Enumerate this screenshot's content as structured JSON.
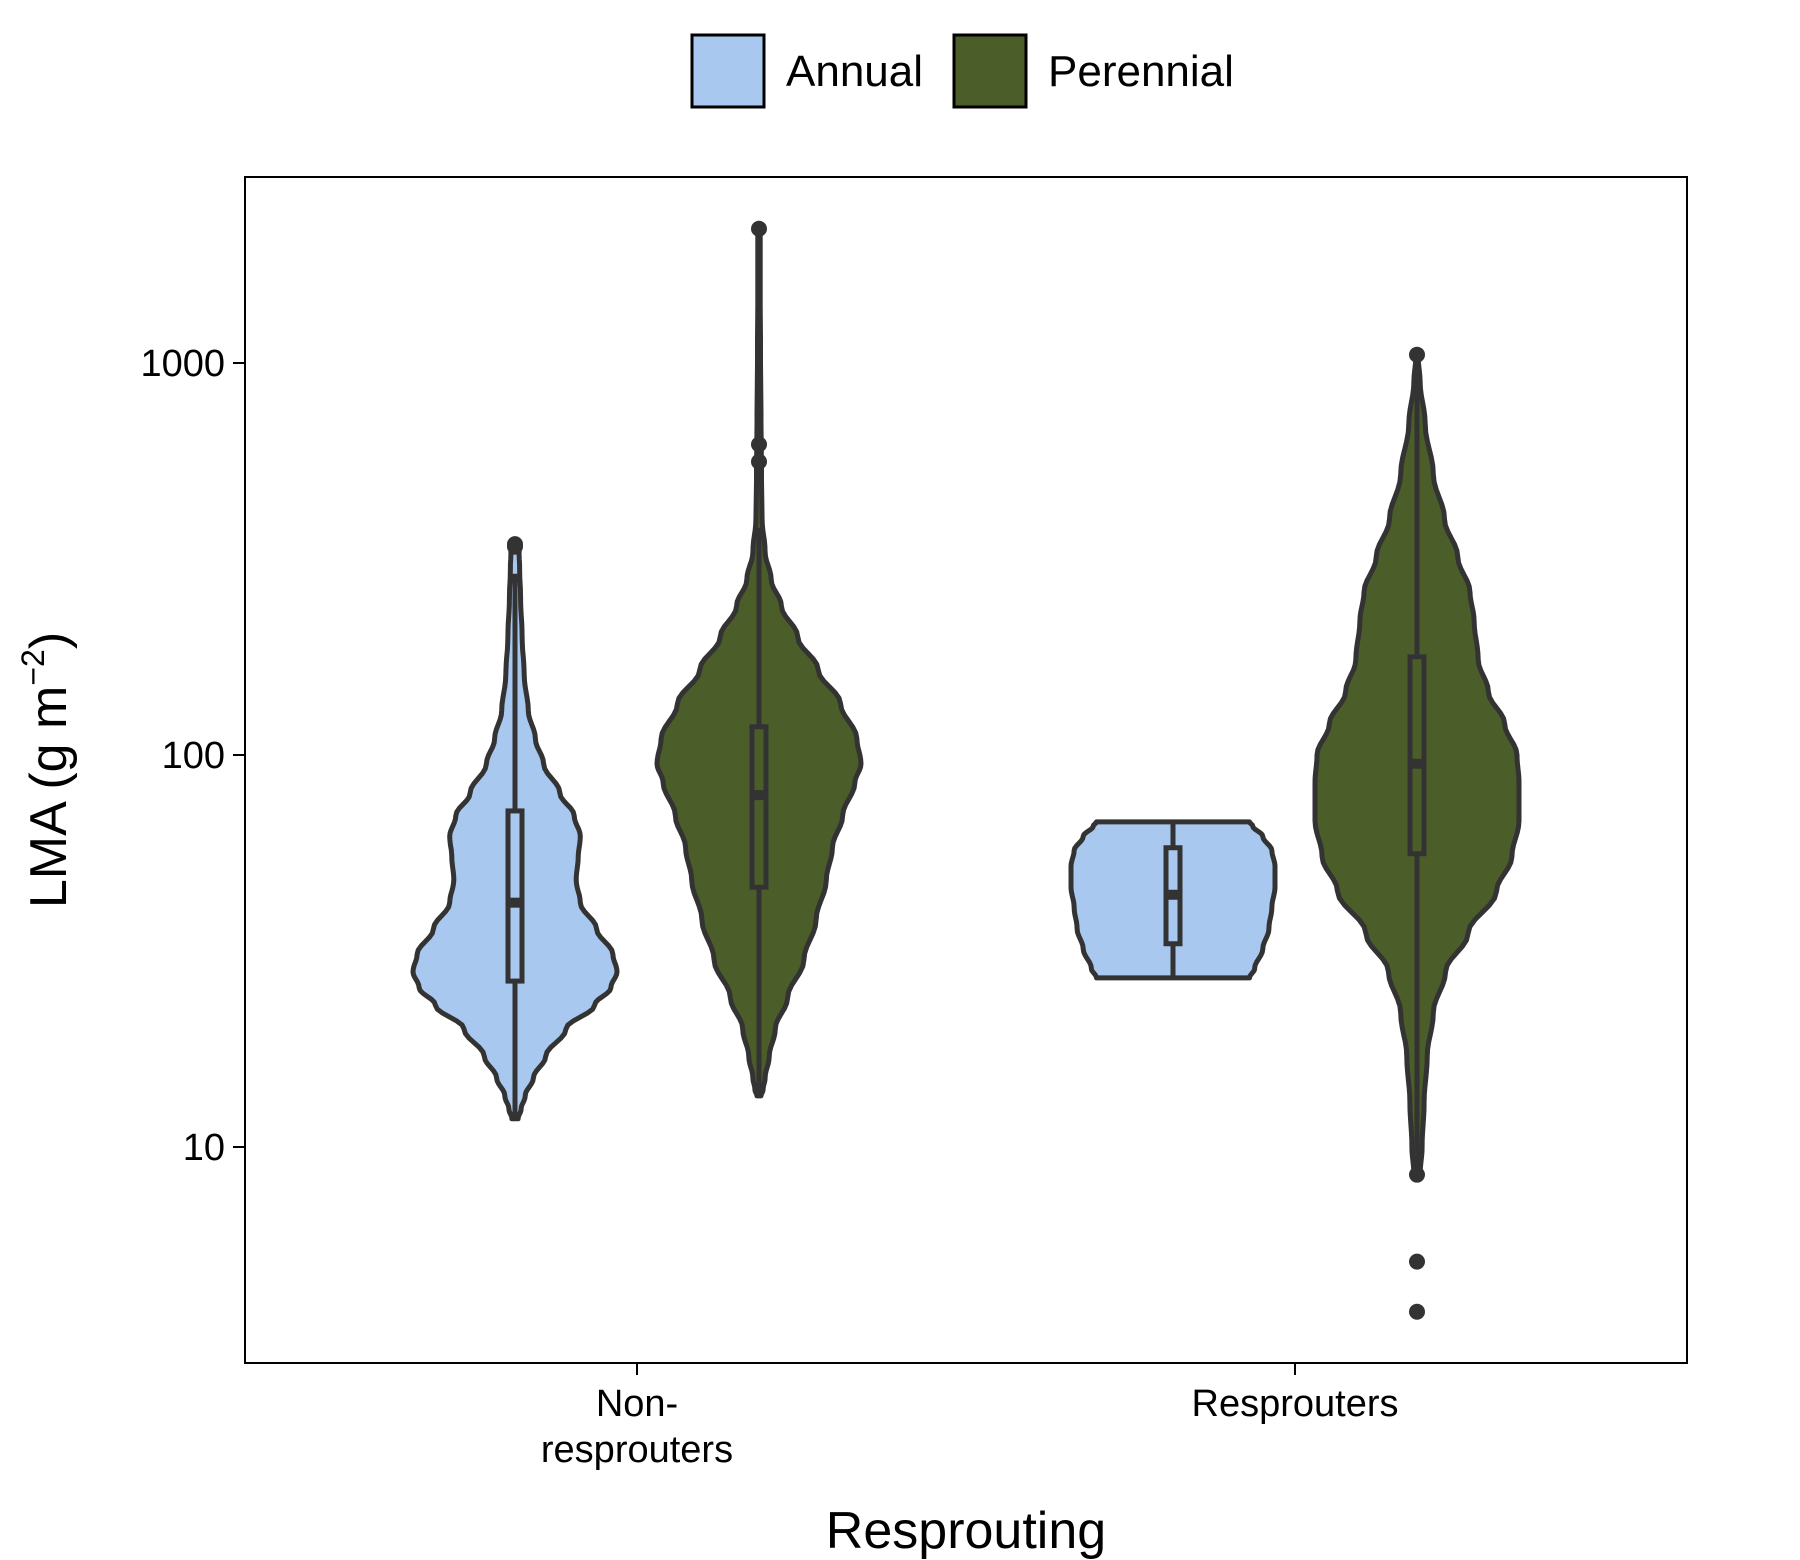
{
  "chart_data": {
    "type": "violin",
    "legend": {
      "position": "top",
      "entries": [
        {
          "label": "Annual",
          "color": "#A9C8EF"
        },
        {
          "label": "Perennial",
          "color": "#4B5E2A"
        }
      ]
    },
    "xlabel": "Resprouting",
    "ylabel_main": "LMA (g m",
    "ylabel_sup": "−2",
    "ylabel_close": ")",
    "y_scale": "log10",
    "ylim": [
      3.5,
      2800
    ],
    "y_ticks": [
      {
        "value": 10,
        "label": "10"
      },
      {
        "value": 100,
        "label": "100"
      },
      {
        "value": 1000,
        "label": "1000"
      }
    ],
    "categories": [
      {
        "lines": [
          "Non-",
          "resprouters"
        ]
      },
      {
        "lines": [
          "Resprouters"
        ]
      }
    ],
    "grid": false,
    "violins": [
      {
        "category": 0,
        "group": "Annual",
        "fill": "#A9C8EF",
        "profile": [
          [
            11.8,
            0.03
          ],
          [
            12.5,
            0.06
          ],
          [
            13.5,
            0.1
          ],
          [
            15,
            0.18
          ],
          [
            17,
            0.3
          ],
          [
            20,
            0.5
          ],
          [
            23,
            0.78
          ],
          [
            25.5,
            0.94
          ],
          [
            28,
            1.0
          ],
          [
            31,
            0.96
          ],
          [
            36,
            0.8
          ],
          [
            42,
            0.64
          ],
          [
            48,
            0.6
          ],
          [
            55,
            0.62
          ],
          [
            62,
            0.64
          ],
          [
            70,
            0.58
          ],
          [
            80,
            0.44
          ],
          [
            95,
            0.28
          ],
          [
            110,
            0.2
          ],
          [
            130,
            0.13
          ],
          [
            160,
            0.09
          ],
          [
            200,
            0.07
          ],
          [
            250,
            0.055
          ],
          [
            300,
            0.045
          ],
          [
            330,
            0.04
          ],
          [
            345,
            0.02
          ]
        ],
        "box": {
          "q1": 26.5,
          "median": 42,
          "q3": 72
        },
        "whisker": [
          11.8,
          290
        ],
        "outliers": [
          340,
          345
        ]
      },
      {
        "category": 0,
        "group": "Perennial",
        "fill": "#4B5E2A",
        "profile": [
          [
            13.5,
            0.02
          ],
          [
            14,
            0.04
          ],
          [
            15,
            0.06
          ],
          [
            17,
            0.1
          ],
          [
            20,
            0.16
          ],
          [
            24,
            0.28
          ],
          [
            30,
            0.44
          ],
          [
            38,
            0.56
          ],
          [
            48,
            0.66
          ],
          [
            58,
            0.72
          ],
          [
            70,
            0.82
          ],
          [
            85,
            0.94
          ],
          [
            95,
            1.0
          ],
          [
            110,
            0.96
          ],
          [
            135,
            0.8
          ],
          [
            165,
            0.58
          ],
          [
            200,
            0.38
          ],
          [
            240,
            0.22
          ],
          [
            280,
            0.12
          ],
          [
            330,
            0.06
          ],
          [
            400,
            0.03
          ],
          [
            500,
            0.025
          ],
          [
            700,
            0.02
          ],
          [
            1000,
            0.015
          ],
          [
            1500,
            0.012
          ],
          [
            2200,
            0.012
          ]
        ],
        "box": {
          "q1": 46,
          "median": 79,
          "q3": 118
        },
        "whisker": [
          13.5,
          380
        ],
        "outliers": [
          2200,
          620,
          560
        ]
      },
      {
        "category": 1,
        "group": "Annual",
        "fill": "#A9C8EF",
        "profile": [
          [
            27,
            0.75
          ],
          [
            28.5,
            0.8
          ],
          [
            32,
            0.88
          ],
          [
            36,
            0.94
          ],
          [
            41,
            0.97
          ],
          [
            46,
            1.0
          ],
          [
            52,
            1.0
          ],
          [
            57,
            0.97
          ],
          [
            62,
            0.88
          ],
          [
            66,
            0.78
          ],
          [
            67.5,
            0.75
          ]
        ],
        "box": {
          "q1": 33,
          "median": 44,
          "q3": 58
        },
        "whisker": [
          27,
          67.5
        ],
        "outliers": []
      },
      {
        "category": 1,
        "group": "Perennial",
        "fill": "#4B5E2A",
        "profile": [
          [
            8.5,
            0.03
          ],
          [
            10,
            0.05
          ],
          [
            13,
            0.07
          ],
          [
            17,
            0.1
          ],
          [
            22,
            0.16
          ],
          [
            28,
            0.28
          ],
          [
            35,
            0.5
          ],
          [
            45,
            0.78
          ],
          [
            55,
            0.93
          ],
          [
            68,
            1.0
          ],
          [
            85,
            1.0
          ],
          [
            100,
            0.98
          ],
          [
            120,
            0.86
          ],
          [
            145,
            0.7
          ],
          [
            175,
            0.6
          ],
          [
            220,
            0.56
          ],
          [
            260,
            0.52
          ],
          [
            320,
            0.4
          ],
          [
            400,
            0.27
          ],
          [
            520,
            0.16
          ],
          [
            700,
            0.08
          ],
          [
            900,
            0.03
          ],
          [
            1050,
            0.01
          ]
        ],
        "box": {
          "q1": 56,
          "median": 95,
          "q3": 178
        },
        "whisker": [
          8.5,
          1050
        ],
        "outliers": [
          1050,
          8.5,
          5.1,
          3.8
        ]
      }
    ]
  }
}
